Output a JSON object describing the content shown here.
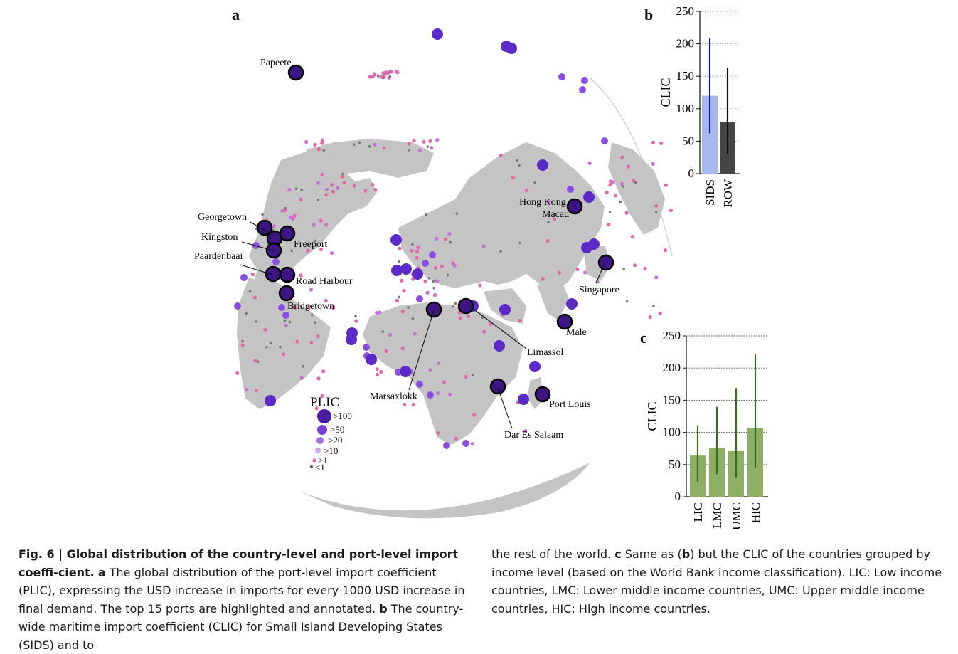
{
  "figure": {
    "panel_a_letter": "a",
    "panel_b_letter": "b",
    "panel_c_letter": "c"
  },
  "map": {
    "legend_title": "PLIC",
    "legend_items": [
      ">100",
      ">50",
      ">20",
      ">10",
      ">1",
      "<1"
    ],
    "port_labels": {
      "papeete": "Papeete",
      "georgetown": "Georgetown",
      "kingston": "Kingston",
      "paardenbaai": "Paardenbaai",
      "freeport": "Freeport",
      "road_harbour": "Road Harbour",
      "bridgetown": "Bridgetown",
      "hong_kong": "Hong Kong",
      "macau": "Macau",
      "singapore": "Singapore",
      "male": "Male",
      "limassol": "Limassol",
      "marsaxlokk": "Marsaxlokk",
      "port_louis": "Port Louis",
      "dar_es_salaam": "Dar Es Salaam"
    },
    "colors": {
      "land": "#c4c4c4",
      "top": "#2a0a4e",
      "high": "#5b2ac7",
      "mid": "#8a4fe0",
      "low": "#c86fd8",
      "pink": "#e06aa8",
      "tiny": "#777777"
    }
  },
  "chart_data": [
    {
      "panel": "b",
      "type": "bar",
      "categories": [
        "SIDS",
        "ROW"
      ],
      "values": [
        120,
        80
      ],
      "error_low": [
        62,
        30
      ],
      "error_high": [
        208,
        163
      ],
      "ylabel": "CLIC",
      "ylim": [
        0,
        250
      ],
      "yticks": [
        "0",
        "50",
        "100",
        "150",
        "200",
        "250"
      ],
      "bar_colors": [
        "#a7b8ee",
        "#454545"
      ],
      "error_colors": [
        "#1a1a8c",
        "#111111"
      ],
      "grid": "horizontal dotted"
    },
    {
      "panel": "c",
      "type": "bar",
      "categories": [
        "LIC",
        "LMC",
        "UMC",
        "HIC"
      ],
      "values": [
        64,
        76,
        71,
        107
      ],
      "error_low": [
        23,
        35,
        30,
        45
      ],
      "error_high": [
        111,
        140,
        169,
        221
      ],
      "ylabel": "CLIC",
      "ylim": [
        0,
        250
      ],
      "yticks": [
        "0",
        "50",
        "100",
        "150",
        "200",
        "250"
      ],
      "bar_color": "#8daf64",
      "error_color": "#3c6a1e",
      "grid": "horizontal dotted"
    }
  ],
  "caption": {
    "fig_label": "Fig. 6 | Global distribution of the country-level and port-level import coeffi-cient.",
    "a_label": "a",
    "a_text": " The global distribution of the port-level import coefficient (PLIC), expressing the USD increase in imports for every 1000 USD increase in final demand. The top 15 ports are highlighted and annotated. ",
    "b_label": "b",
    "b_text": " The country-wide maritime import coefficient (CLIC) for Small Island Developing States (SIDS) and to",
    "b_text_cont": "the rest of the world. ",
    "c_label": "c",
    "c_text_1": " Same as (",
    "c_text_b": "b",
    "c_text_2": ") but the CLIC of the countries grouped by income level (based on the World Bank income classification). LIC: Low income countries, LMC: Lower middle income countries, UMC: Upper middle income countries, HIC: High income countries."
  }
}
